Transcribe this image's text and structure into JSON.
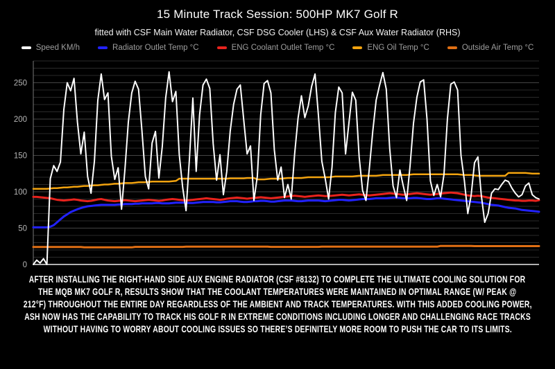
{
  "page": {
    "background": "#000000"
  },
  "header": {
    "title": "15 Minute Track Session: 500HP MK7 Golf R",
    "subtitle": "fitted with CSF Main Water Radiator, CSF DSG Cooler (LHS) & CSF Aux Water Radiator (RHS)"
  },
  "chart_data": {
    "type": "line",
    "title": "15 Minute Track Session: 500HP MK7 Golf R",
    "xlabel": "",
    "ylabel": "",
    "x_description": "time across 15-minute track session, 150 samples, no x-axis tick labels shown",
    "ylim": [
      0,
      280
    ],
    "yticks": [
      0,
      50,
      100,
      150,
      200,
      250
    ],
    "grid": {
      "show": true,
      "minor_step": 10,
      "major_step": 50
    },
    "legend_position": "top",
    "axis_colors": {
      "tick_label": "#b5b5b5",
      "axis_line": "#b0b0b0",
      "minor_grid": "#2a2a2a",
      "major_grid": "#454545"
    },
    "series": [
      {
        "name": "Speed KM/h",
        "color": "#ffffff",
        "width": 2,
        "values": [
          0,
          6,
          2,
          8,
          0,
          118,
          136,
          128,
          141,
          213,
          250,
          239,
          256,
          196,
          152,
          182,
          121,
          98,
          142,
          226,
          262,
          227,
          236,
          149,
          117,
          133,
          76,
          131,
          196,
          236,
          252,
          241,
          184,
          121,
          104,
          167,
          183,
          119,
          162,
          229,
          265,
          224,
          238,
          151,
          106,
          74,
          146,
          229,
          128,
          206,
          247,
          255,
          242,
          166,
          116,
          151,
          96,
          128,
          183,
          220,
          241,
          247,
          199,
          152,
          163,
          88,
          121,
          206,
          249,
          253,
          236,
          158,
          116,
          134,
          92,
          110,
          90,
          152,
          201,
          232,
          202,
          218,
          245,
          262,
          205,
          142,
          118,
          90,
          134,
          209,
          244,
          236,
          152,
          195,
          237,
          226,
          148,
          102,
          88,
          132,
          183,
          226,
          246,
          264,
          241,
          160,
          108,
          92,
          130,
          108,
          88,
          136,
          194,
          230,
          251,
          254,
          200,
          115,
          95,
          110,
          93,
          124,
          200,
          248,
          251,
          240,
          150,
          115,
          70,
          95,
          140,
          148,
          95,
          58,
          70,
          98,
          104,
          103,
          110,
          116,
          114,
          105,
          98,
          93,
          96,
          108,
          112,
          96,
          92,
          90
        ]
      },
      {
        "name": "Radiator Outlet Temp °C",
        "color": "#2222ff",
        "width": 3,
        "values": [
          51,
          51,
          51,
          51,
          51,
          52,
          54,
          58,
          62,
          66,
          69,
          72,
          74,
          76,
          77.5,
          79,
          80,
          80.5,
          81,
          81.5,
          82,
          82,
          82,
          82,
          82,
          82.5,
          82.5,
          83,
          83,
          83,
          83.5,
          83.5,
          84,
          84,
          84,
          84,
          84.5,
          84.5,
          84,
          84,
          84,
          84.5,
          85,
          85,
          85,
          85,
          84.5,
          84.5,
          85,
          85.5,
          86,
          86,
          86,
          86,
          85.5,
          85.5,
          86,
          86.5,
          87,
          87,
          87,
          86.5,
          86,
          86,
          86.5,
          87,
          87,
          87.5,
          87.5,
          87,
          86.5,
          86.5,
          87,
          87.5,
          88,
          88,
          88,
          87.5,
          87,
          87,
          87.5,
          88,
          88,
          88,
          88,
          87.5,
          87,
          87.5,
          88,
          88.5,
          89,
          89,
          88.5,
          88,
          88.5,
          89,
          89.5,
          90,
          90,
          90,
          90.5,
          91,
          91,
          91,
          91,
          91.5,
          92,
          92,
          91.5,
          91,
          91,
          91,
          91.5,
          91.5,
          91,
          90.5,
          90,
          90,
          90.5,
          91,
          91,
          90.5,
          90,
          89.5,
          89,
          88.5,
          88,
          87.5,
          87,
          86.5,
          86,
          85.5,
          85,
          84,
          83,
          82,
          81.5,
          81,
          80,
          79,
          78,
          77.5,
          77,
          76,
          75,
          74.5,
          74,
          73.5,
          73,
          72.5
        ]
      },
      {
        "name": "ENG Coolant Outlet Temp °C",
        "color": "#e8231d",
        "width": 3,
        "values": [
          93,
          93,
          92.5,
          92,
          91.5,
          91,
          90,
          89,
          88.5,
          88,
          88.5,
          89,
          89.5,
          89,
          88,
          87.5,
          87,
          87.5,
          88.5,
          89.5,
          90,
          89,
          88,
          87.5,
          87,
          87.5,
          88,
          88.5,
          88,
          87.5,
          87,
          87.5,
          88,
          88.5,
          89,
          88.5,
          88,
          87.5,
          88,
          89,
          89.5,
          90,
          89.5,
          89,
          88.5,
          88,
          88.5,
          89,
          89.5,
          90,
          90.5,
          91,
          90.5,
          90,
          89.5,
          89,
          89.5,
          90.5,
          91,
          91.5,
          92,
          91.5,
          91,
          90.5,
          91,
          91.5,
          92,
          92.5,
          92,
          91.5,
          91,
          91.5,
          92,
          92.5,
          93,
          93.5,
          94,
          94.5,
          94,
          93.5,
          93,
          93.5,
          94,
          94.5,
          95,
          94.5,
          94,
          94,
          94.5,
          95,
          95.5,
          96,
          95.5,
          95,
          95.5,
          96,
          96.5,
          96,
          95.5,
          95,
          95.5,
          96,
          96.5,
          97,
          97.5,
          98,
          97.5,
          97,
          96.5,
          96,
          96.5,
          97,
          97.5,
          98,
          97.5,
          97,
          96.5,
          96,
          96.5,
          97,
          97.5,
          98,
          98.5,
          99,
          98.5,
          98,
          97,
          96,
          95,
          94.5,
          94,
          94.5,
          94,
          93,
          92,
          91.5,
          91,
          90.5,
          90,
          89.5,
          89,
          88.5,
          88,
          88,
          87.5,
          87.5,
          88,
          88,
          87.5,
          88.5
        ]
      },
      {
        "name": "ENG Oil Temp °C",
        "color": "#f2a30f",
        "width": 2.5,
        "values": [
          104,
          104,
          104,
          104,
          104,
          104.5,
          105,
          105,
          105.5,
          106,
          106,
          106.5,
          107,
          107,
          107.5,
          108,
          108,
          108.5,
          109,
          109,
          109.5,
          110,
          110,
          110.5,
          111,
          111,
          111.5,
          112,
          112,
          112,
          112.5,
          113,
          113,
          113,
          113.5,
          114,
          114,
          114,
          114,
          114,
          114,
          114.5,
          115,
          118,
          118,
          118,
          118,
          118,
          118,
          118,
          118,
          118,
          118,
          118,
          118,
          118,
          118,
          118,
          118.5,
          118.5,
          118.5,
          118.5,
          118.5,
          119,
          119,
          119,
          117,
          117,
          117,
          117.5,
          118,
          118,
          118,
          118,
          118.5,
          119,
          119,
          119,
          119,
          119,
          119.5,
          120,
          120,
          120,
          120,
          120,
          120,
          120,
          120.5,
          121,
          121,
          121,
          121,
          121,
          121,
          121.5,
          122,
          122,
          122,
          122,
          122,
          122,
          122.5,
          123,
          123,
          123,
          123,
          123,
          123,
          123,
          123,
          123.5,
          124,
          124,
          124,
          124,
          124,
          124,
          124,
          124,
          124,
          124,
          124,
          124,
          124,
          124,
          123.5,
          123,
          123,
          123,
          122.5,
          122,
          122,
          122,
          122,
          122,
          122,
          122,
          122,
          122,
          126,
          126,
          126,
          126,
          126,
          126,
          125.5,
          125,
          125,
          125
        ]
      },
      {
        "name": "Outside Air Temp °C",
        "color": "#e06f14",
        "width": 3,
        "values": [
          24,
          24,
          24,
          24,
          24,
          24,
          24,
          24,
          24,
          24,
          24,
          24,
          24,
          24,
          24,
          23.5,
          23.5,
          23.5,
          23.5,
          23.5,
          23.5,
          23.5,
          23.5,
          23.5,
          23.5,
          23.5,
          23.5,
          23.5,
          23.5,
          23.5,
          24.2,
          24.2,
          24.2,
          24.2,
          24.2,
          24.2,
          24.2,
          24.2,
          24.2,
          24.2,
          24.2,
          24.2,
          24.2,
          24.2,
          24.2,
          24.5,
          24.5,
          24.5,
          24.5,
          24.5,
          24.5,
          24.5,
          24.5,
          24.5,
          24.5,
          24.5,
          24.5,
          24.5,
          24.5,
          24.5,
          24.5,
          24.5,
          24.5,
          24.5,
          24.5,
          24.5,
          24.5,
          24.5,
          24.5,
          24.5,
          24.2,
          24.2,
          24.2,
          24.2,
          24.2,
          24.2,
          24.2,
          24.2,
          24.2,
          24.2,
          24.2,
          24.2,
          24.2,
          24.2,
          24.2,
          24.5,
          24.5,
          24.5,
          24.5,
          24.5,
          24.5,
          24.5,
          24.5,
          24.5,
          24.5,
          24.5,
          24.5,
          24.5,
          24.5,
          24.5,
          24.5,
          24.5,
          24.5,
          24.5,
          24.5,
          24.5,
          24.5,
          24.5,
          24.5,
          24.5,
          24.5,
          24.5,
          24.5,
          24.5,
          24.5,
          24.5,
          24.5,
          24.5,
          24.5,
          24.5,
          25.5,
          25.5,
          25.5,
          25.5,
          25.5,
          25.5,
          25.5,
          25.5,
          25.5,
          25.5,
          25.2,
          25.2,
          25.2,
          25.2,
          25.2,
          25.2,
          25.2,
          25.2,
          25.2,
          25.2,
          25.2,
          25.2,
          25.2,
          25.2,
          25.2,
          25.2,
          25.2,
          25.2,
          25.2,
          25.2
        ]
      }
    ]
  },
  "caption": {
    "lines": [
      "AFTER INSTALLING THE RIGHT-HAND SIDE AUX ENGINE RADIATOR (CSF #8132) TO COMPLETE THE ULTIMATE COOLING SOLUTION FOR",
      "THE MQB MK7 GOLF R, RESULTS SHOW THAT THE COOLANT TEMPERATURES WERE MAINTAINED IN OPTIMAL RANGE (W/ PEAK @",
      "212°F) THROUGHOUT THE ENTIRE DAY REGARDLESS OF THE AMBIENT AND TRACK TEMPERATURES. WITH THIS ADDED COOLING POWER,",
      "ASH NOW HAS THE CAPABILITY TO TRACK HIS GOLF R IN EXTREME CONDITIONS INCLUDING LONGER AND CHALLENGING RACE TRACKS",
      "WITHOUT HAVING TO WORRY ABOUT COOLING ISSUES SO THERE’S DEFINITELY MORE ROOM TO PUSH THE CAR TO ITS LIMITS."
    ]
  }
}
